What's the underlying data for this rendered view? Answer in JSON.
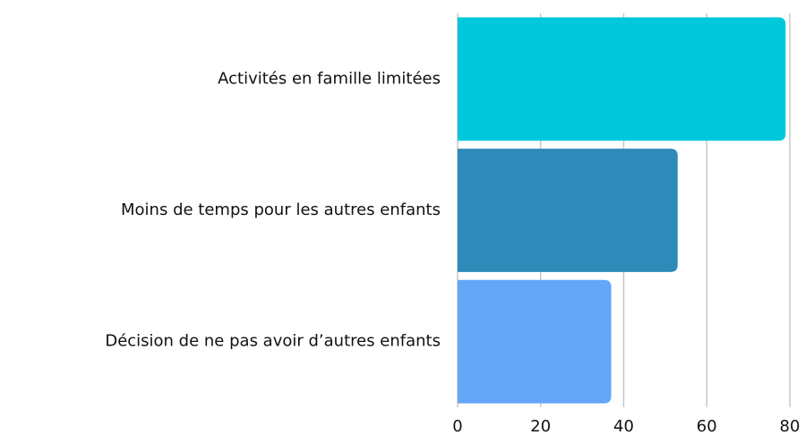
{
  "chart_data": {
    "type": "bar",
    "orientation": "horizontal",
    "categories": [
      "Activités en famille limitées",
      "Moins de temps pour les autres enfants",
      "Décision de ne pas avoir d’autres enfants"
    ],
    "values": [
      79,
      53,
      37
    ],
    "colors": [
      "#00c8db",
      "#2e8ab8",
      "#64a6f8"
    ],
    "xlim": [
      0,
      80
    ],
    "xticks": [
      0,
      20,
      40,
      60,
      80
    ],
    "grid": true
  }
}
